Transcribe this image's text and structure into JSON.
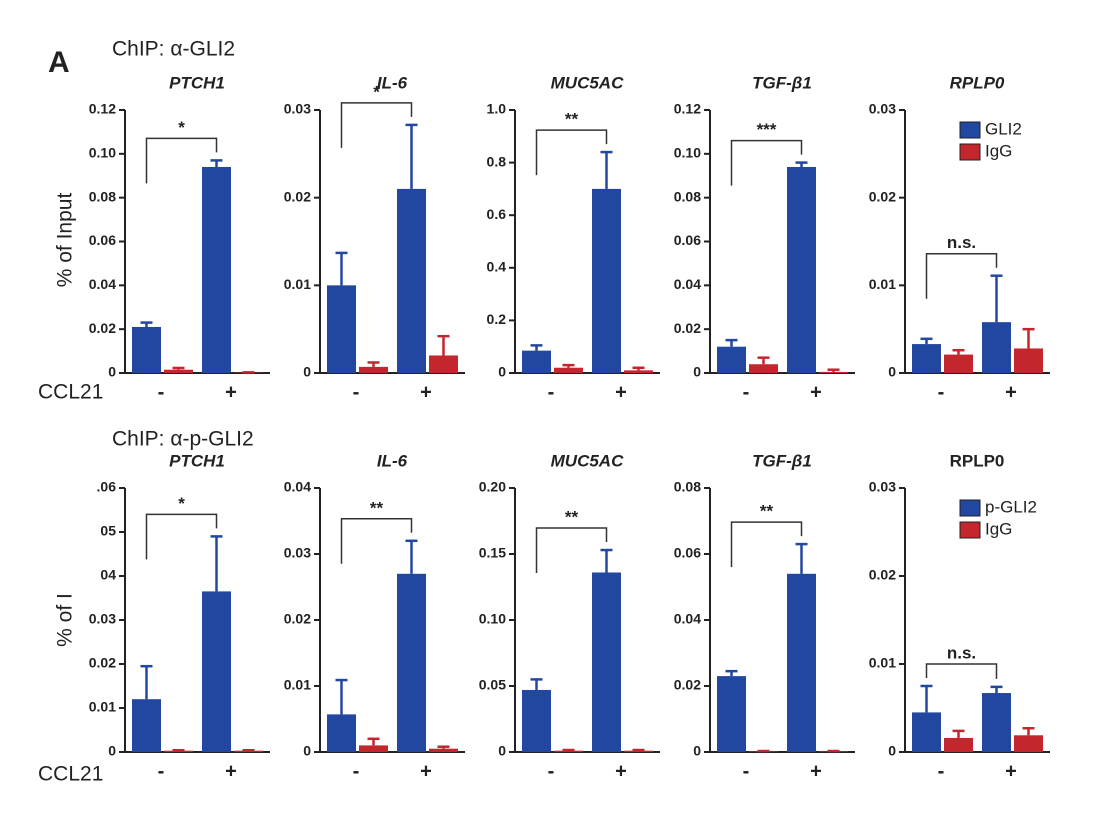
{
  "panel_label": "A",
  "rows": [
    {
      "title": "ChIP: α-GLI2",
      "ylabel": "% of Input",
      "xlabel": "CCL21"
    },
    {
      "title": "ChIP: α-p-GLI2",
      "ylabel": "% of I",
      "xlabel": "CCL21"
    }
  ],
  "chart_data": [
    {
      "type": "bar",
      "title": "PTCH1",
      "categories": [
        "-",
        "+"
      ],
      "ylim": [
        0,
        0.12
      ],
      "yticks": [
        0,
        0.02,
        0.04,
        0.06,
        0.08,
        {
          "value": 0.1,
          "label": "0.10"
        },
        0.12
      ],
      "annotation": "*",
      "series": [
        {
          "color": "#2247a0",
          "values": [
            0.021,
            0.094
          ],
          "errors": [
            0.002,
            0.003
          ]
        },
        {
          "color": "#c4262e",
          "values": [
            0.0015,
            0.0002
          ],
          "errors": [
            0.0008,
            0.0001
          ]
        }
      ]
    },
    {
      "type": "bar",
      "title": "IL-6",
      "categories": [
        "-",
        "+"
      ],
      "ylim": [
        0,
        0.03
      ],
      "yticks": [
        0,
        0.01,
        0.02,
        0.03
      ],
      "annotation": "*",
      "series": [
        {
          "color": "#2247a0",
          "values": [
            0.01,
            0.021
          ],
          "errors": [
            0.0037,
            0.0073
          ]
        },
        {
          "color": "#c4262e",
          "values": [
            0.0007,
            0.002
          ],
          "errors": [
            0.0005,
            0.0022
          ]
        }
      ]
    },
    {
      "type": "bar",
      "title": "MUC5AC",
      "categories": [
        "-",
        "+"
      ],
      "ylim": [
        0,
        1.0
      ],
      "yticks": [
        0,
        0.2,
        0.4,
        0.6,
        0.8,
        {
          "value": 1.0,
          "label": "1.0"
        }
      ],
      "annotation": "**",
      "series": [
        {
          "color": "#2247a0",
          "values": [
            0.085,
            0.7
          ],
          "errors": [
            0.02,
            0.14
          ]
        },
        {
          "color": "#c4262e",
          "values": [
            0.02,
            0.01
          ],
          "errors": [
            0.01,
            0.01
          ]
        }
      ]
    },
    {
      "type": "bar",
      "title": "TGF-β1",
      "categories": [
        "-",
        "+"
      ],
      "ylim": [
        0,
        0.12
      ],
      "yticks": [
        0,
        0.02,
        0.04,
        0.06,
        0.08,
        {
          "value": 0.1,
          "label": "0.10"
        },
        0.12
      ],
      "annotation": "***",
      "series": [
        {
          "color": "#2247a0",
          "values": [
            0.012,
            0.094
          ],
          "errors": [
            0.003,
            0.002
          ]
        },
        {
          "color": "#c4262e",
          "values": [
            0.004,
            0.0005
          ],
          "errors": [
            0.003,
            0.001
          ]
        }
      ]
    },
    {
      "type": "bar",
      "title": "RPLP0",
      "categories": [
        "-",
        "+"
      ],
      "ylim": [
        0,
        0.03
      ],
      "yticks": [
        0,
        0.01,
        0.02,
        0.03
      ],
      "annotation": "n.s.",
      "legend": "upper right",
      "series": [
        {
          "name": "GLI2",
          "color": "#2247a0",
          "values": [
            0.0033,
            0.0058
          ],
          "errors": [
            0.0006,
            0.0053
          ]
        },
        {
          "name": "IgG",
          "color": "#c4262e",
          "values": [
            0.0021,
            0.0028
          ],
          "errors": [
            0.0005,
            0.0022
          ]
        }
      ]
    },
    {
      "type": "bar",
      "title": "PTCH1",
      "categories": [
        "-",
        "+"
      ],
      "ylim": [
        0,
        0.06
      ],
      "yticks": [
        0,
        0.01,
        0.02,
        0.03,
        {
          "value": 0.04,
          "label": "04"
        },
        {
          "value": 0.05,
          "label": "05"
        },
        {
          "value": 0.06,
          "label": ".06"
        }
      ],
      "annotation": "*",
      "series": [
        {
          "color": "#2247a0",
          "values": [
            0.012,
            0.0365
          ],
          "errors": [
            0.0075,
            0.0125
          ]
        },
        {
          "color": "#c4262e",
          "values": [
            0.0003,
            0.0003
          ],
          "errors": [
            0.0001,
            0.0001
          ]
        }
      ]
    },
    {
      "type": "bar",
      "title": "IL-6",
      "categories": [
        "-",
        "+"
      ],
      "ylim": [
        0,
        0.04
      ],
      "yticks": [
        0,
        0.01,
        0.02,
        0.03,
        0.04
      ],
      "annotation": "**",
      "series": [
        {
          "color": "#2247a0",
          "values": [
            0.0057,
            0.027
          ],
          "errors": [
            0.0052,
            0.005
          ]
        },
        {
          "color": "#c4262e",
          "values": [
            0.001,
            0.0005
          ],
          "errors": [
            0.001,
            0.0003
          ]
        }
      ]
    },
    {
      "type": "bar",
      "title": "MUC5AC",
      "categories": [
        "-",
        "+"
      ],
      "ylim": [
        0,
        0.2
      ],
      "yticks": [
        0,
        0.05,
        {
          "value": 0.1,
          "label": "0.10"
        },
        0.15,
        {
          "value": 0.2,
          "label": "0.20"
        }
      ],
      "annotation": "**",
      "series": [
        {
          "color": "#2247a0",
          "values": [
            0.047,
            0.136
          ],
          "errors": [
            0.008,
            0.017
          ]
        },
        {
          "color": "#c4262e",
          "values": [
            0.001,
            0.001
          ],
          "errors": [
            0.0005,
            0.0005
          ]
        }
      ]
    },
    {
      "type": "bar",
      "title": "TGF-β1",
      "categories": [
        "-",
        "+"
      ],
      "ylim": [
        0,
        0.08
      ],
      "yticks": [
        0,
        0.02,
        0.04,
        0.06,
        0.08
      ],
      "annotation": "**",
      "series": [
        {
          "color": "#2247a0",
          "values": [
            0.023,
            0.054
          ],
          "errors": [
            0.0015,
            0.009
          ]
        },
        {
          "color": "#c4262e",
          "values": [
            0.0002,
            0.0002
          ],
          "errors": [
            0.0001,
            0.0001
          ]
        }
      ]
    },
    {
      "type": "bar",
      "title": "RPLP0",
      "categories": [
        "-",
        "+"
      ],
      "ylim": [
        0,
        0.03
      ],
      "yticks": [
        0,
        0.01,
        0.02,
        0.03
      ],
      "annotation": "n.s.",
      "legend": "upper right",
      "series": [
        {
          "name": "p-GLI2",
          "color": "#2247a0",
          "values": [
            0.0045,
            0.0067
          ],
          "errors": [
            0.003,
            0.0007
          ]
        },
        {
          "name": "IgG",
          "color": "#c4262e",
          "values": [
            0.0016,
            0.0019
          ],
          "errors": [
            0.0008,
            0.0008
          ]
        }
      ]
    }
  ]
}
